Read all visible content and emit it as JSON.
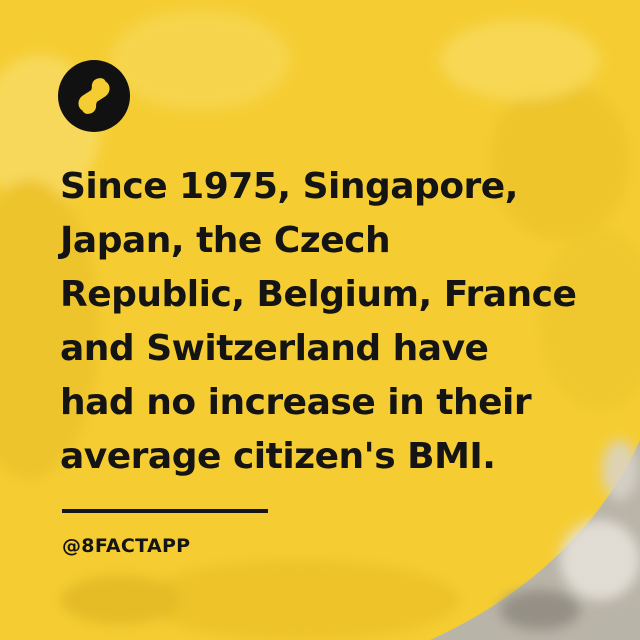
{
  "brand": {
    "logo_icon": "infinity-eight-icon",
    "logo_background": "#111111",
    "logo_glyph_color": "#f5cd33"
  },
  "fact": {
    "lines": [
      "Since 1975, Singapore,",
      "Japan, the Czech",
      "Republic, Belgium, France",
      "and Switzerland have",
      "had no increase in their",
      "average citizen's BMI."
    ]
  },
  "footer": {
    "handle": "@8FACTAPP"
  },
  "colors": {
    "background": "#f5cd33",
    "text": "#141414"
  }
}
